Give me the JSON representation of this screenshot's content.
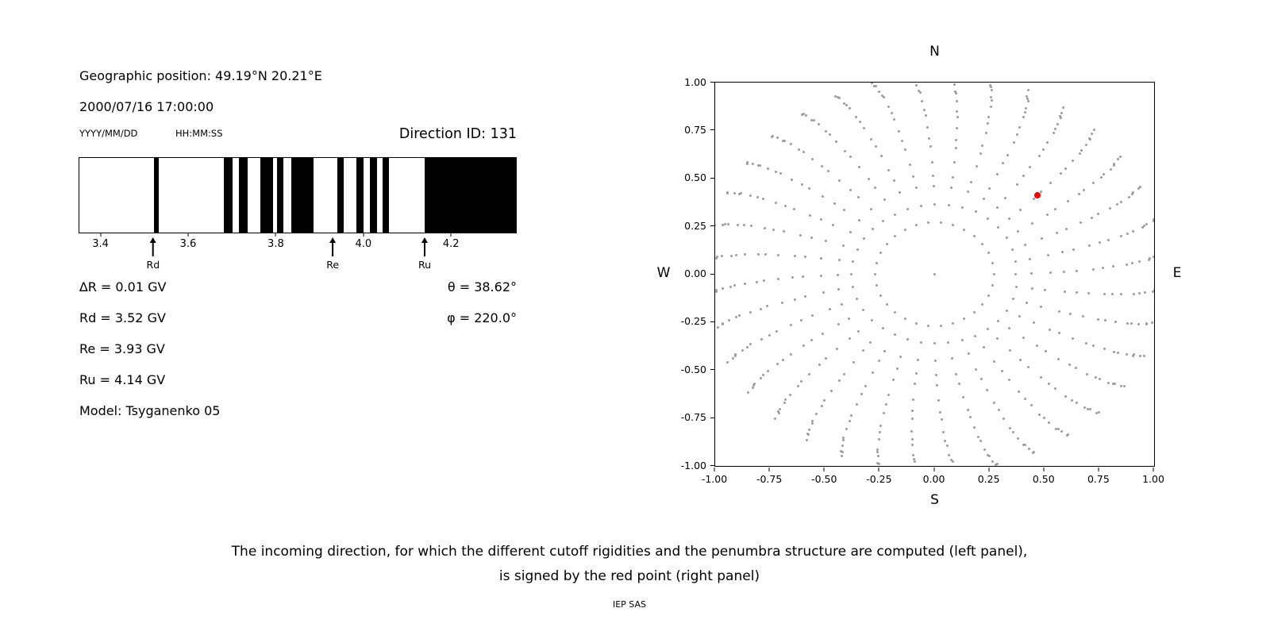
{
  "page": {
    "background": "#ffffff",
    "caption_line1": "The incoming direction, for which the different cutoff rigidities and the penumbra structure are computed (left panel),",
    "caption_line2": "is signed by the red point (right panel)",
    "credit": "IEP SAS"
  },
  "left_panel": {
    "geographic_position": "Geographic position: 49.19°N 20.21°E",
    "datetime": "2000/07/16 17:00:00",
    "date_format_label": "YYYY/MM/DD",
    "time_format_label": "HH:MM:SS",
    "direction_id": "Direction ID: 131",
    "delta_r": "∆R = 0.01 GV",
    "rd": "Rd = 3.52 GV",
    "re": "Re = 3.93 GV",
    "ru": "Ru = 4.14 GV",
    "model": "Model: Tsyganenko 05",
    "theta": "θ = 38.62°",
    "phi": "φ = 220.0°"
  },
  "chart_data": [
    {
      "type": "bar",
      "name": "penumbra-structure",
      "description": "Penumbra structure between lower cutoff Rd and upper cutoff Ru; black bands are forbidden rigidity intervals (GV)",
      "x_range": [
        3.35,
        4.35
      ],
      "x_ticks": [
        "3.4",
        "3.6",
        "3.8",
        "4.0",
        "4.2"
      ],
      "xlabel": "",
      "band_color": "#000000",
      "black_bands_gv": [
        [
          3.52,
          3.532
        ],
        [
          3.68,
          3.7
        ],
        [
          3.716,
          3.736
        ],
        [
          3.765,
          3.794
        ],
        [
          3.802,
          3.818
        ],
        [
          3.836,
          3.886
        ],
        [
          3.94,
          3.955
        ],
        [
          3.985,
          4.0
        ],
        [
          4.016,
          4.031
        ],
        [
          4.045,
          4.06
        ],
        [
          4.14,
          4.35
        ]
      ],
      "markers": [
        {
          "label": "Rd",
          "value": 3.52
        },
        {
          "label": "Re",
          "value": 3.93
        },
        {
          "label": "Ru",
          "value": 4.14
        }
      ]
    },
    {
      "type": "scatter",
      "name": "incoming-direction-map",
      "x_range": [
        -1,
        1
      ],
      "y_range": [
        -1,
        1
      ],
      "x_ticks": [
        "-1.00",
        "-0.75",
        "-0.50",
        "-0.25",
        "0.00",
        "0.25",
        "0.50",
        "0.75",
        "1.00"
      ],
      "y_ticks": [
        "1.00",
        "0.75",
        "0.50",
        "0.25",
        "0.00",
        "-0.25",
        "-0.50",
        "-0.75",
        "-1.00"
      ],
      "compass": {
        "top": "N",
        "bottom": "S",
        "left": "W",
        "right": "E"
      },
      "grid": false,
      "gray_color": "#9b9b9b",
      "red_point": {
        "x": 0.47,
        "y": 0.41,
        "color": "#ff0000"
      },
      "gray_pattern": {
        "center_dot": true,
        "ring": {
          "radius": 0.27,
          "count": 30
        },
        "spokes": {
          "count": 36,
          "angle_offset_deg": 0,
          "twist_deg": 6,
          "radii": [
            0.37,
            0.45,
            0.52,
            0.59,
            0.655,
            0.715,
            0.77,
            0.82,
            0.865,
            0.905,
            0.94,
            0.968,
            0.99,
            1.008,
            1.025,
            1.04
          ],
          "jitter": 0.01
        }
      }
    }
  ]
}
